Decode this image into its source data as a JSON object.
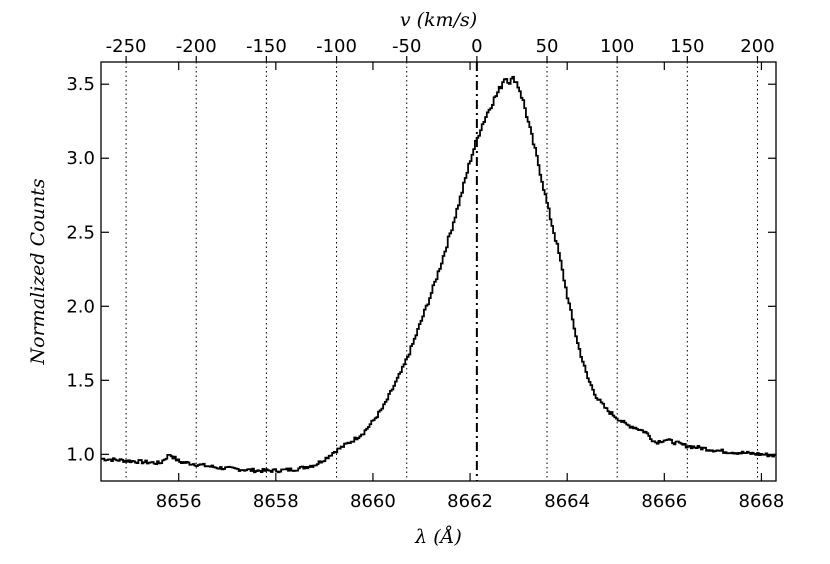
{
  "chart_data": {
    "type": "line",
    "xlabel": "λ (Å)",
    "ylabel": "Normalized Counts",
    "top_xlabel": "v (km/s)",
    "xlim": [
      8654.4,
      8668.3
    ],
    "ylim": [
      0.82,
      3.65
    ],
    "xticks": [
      8656,
      8658,
      8660,
      8662,
      8664,
      8666,
      8668
    ],
    "yticks": [
      1.0,
      1.5,
      2.0,
      2.5,
      3.0,
      3.5
    ],
    "ytick_labels": [
      "1.0",
      "1.5",
      "2.0",
      "2.5",
      "3.0",
      "3.5"
    ],
    "top_ticks": {
      "velocities": [
        -250,
        -200,
        -150,
        -100,
        -50,
        0,
        50,
        100,
        150,
        200
      ],
      "labels": [
        "-250",
        "-200",
        "-150",
        "-100",
        "-50",
        "0",
        "50",
        "100",
        "150",
        "200"
      ],
      "rest_wavelength": 8662.14
    },
    "velocity_gridlines": [
      -250,
      -200,
      -150,
      -100,
      -50,
      50,
      100,
      150,
      200
    ],
    "zero_velocity_line": 0,
    "grid": "vertical dotted at velocity ticks",
    "line_style": "steps",
    "line_color": "#000000",
    "series": [
      {
        "x": [
          8654.4,
          8654.8,
          8655.2,
          8655.6,
          8655.8,
          8656.0,
          8656.4,
          8656.8,
          8657.2,
          8657.6,
          8658.0,
          8658.4,
          8658.8,
          8659.0,
          8659.2,
          8659.4,
          8659.6,
          8659.8,
          8660.0,
          8660.2,
          8660.4,
          8660.6,
          8660.8,
          8661.0,
          8661.2,
          8661.4,
          8661.6,
          8661.8,
          8662.0,
          8662.2,
          8662.4,
          8662.6,
          8662.7,
          8662.8,
          8662.9,
          8663.0,
          8663.1,
          8663.2,
          8663.4,
          8663.6,
          8663.8,
          8664.0,
          8664.2,
          8664.4,
          8664.6,
          8664.8,
          8665.0,
          8665.2,
          8665.4,
          8665.6,
          8665.8,
          8666.0,
          8666.4,
          8666.8,
          8667.2,
          8667.6,
          8668.0,
          8668.3
        ],
        "y": [
          0.97,
          0.96,
          0.95,
          0.94,
          1.0,
          0.95,
          0.93,
          0.91,
          0.9,
          0.89,
          0.89,
          0.9,
          0.93,
          0.97,
          1.02,
          1.06,
          1.1,
          1.15,
          1.23,
          1.32,
          1.45,
          1.58,
          1.74,
          1.92,
          2.1,
          2.3,
          2.52,
          2.75,
          3.0,
          3.2,
          3.35,
          3.47,
          3.55,
          3.52,
          3.54,
          3.47,
          3.36,
          3.22,
          2.95,
          2.65,
          2.38,
          2.05,
          1.75,
          1.52,
          1.38,
          1.3,
          1.25,
          1.2,
          1.18,
          1.15,
          1.08,
          1.1,
          1.06,
          1.04,
          1.02,
          1.01,
          1.0,
          0.99
        ]
      }
    ]
  }
}
